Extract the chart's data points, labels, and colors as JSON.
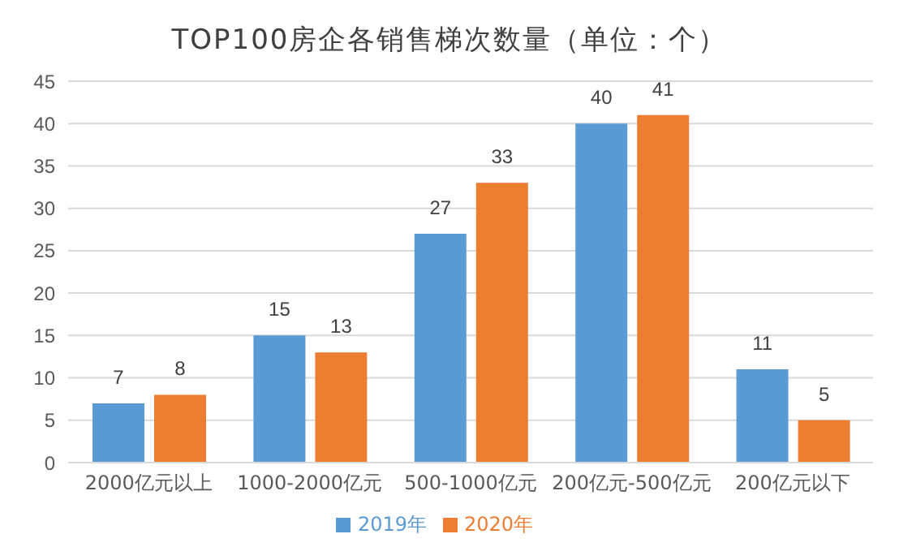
{
  "chart_data": {
    "type": "bar",
    "title": "TOP100房企各销售梯次数量（单位：个）",
    "categories": [
      "2000亿元以上",
      "1000-2000亿元",
      "500-1000亿元",
      "200亿元-500亿元",
      "200亿元以下"
    ],
    "series": [
      {
        "name": "2019年",
        "color": "#5b9bd5",
        "values": [
          7,
          15,
          27,
          40,
          11
        ]
      },
      {
        "name": "2020年",
        "color": "#ed7d31",
        "values": [
          8,
          13,
          33,
          41,
          5
        ]
      }
    ],
    "ylim": [
      0,
      45
    ],
    "yticks": [
      0,
      5,
      10,
      15,
      20,
      25,
      30,
      35,
      40,
      45
    ],
    "grid": "y",
    "legend": "bottom",
    "data_labels": true
  }
}
